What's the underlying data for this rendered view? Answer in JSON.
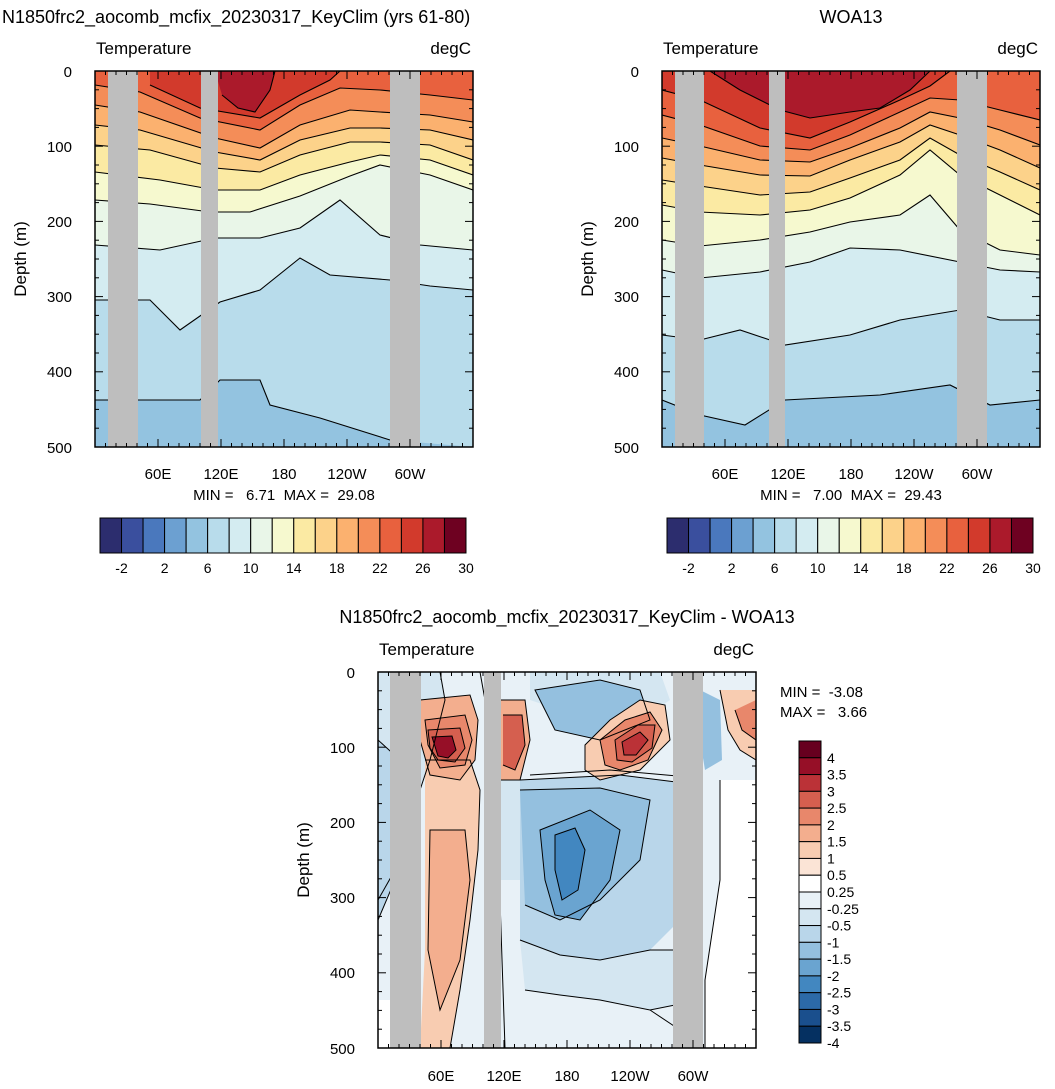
{
  "chart_data": [
    {
      "type": "heatmap",
      "title": "N1850frc2_aocomb_mcfix_20230317_KeyClim (yrs 61-80)",
      "left_label": "Temperature",
      "right_label": "degC",
      "ylabel": "Depth (m)",
      "ylim": [
        0,
        500
      ],
      "y_ticks": [
        "0",
        "100",
        "200",
        "300",
        "400",
        "500"
      ],
      "x_ticks": [
        "60E",
        "120E",
        "180",
        "120W",
        "60W"
      ],
      "stats": "MIN =   6.71  MAX =  29.08",
      "colorbar_labels": [
        "-2",
        "2",
        "6",
        "10",
        "14",
        "18",
        "22",
        "26",
        "30"
      ],
      "colorbar_levels": [
        -4,
        -2,
        0,
        2,
        4,
        6,
        8,
        10,
        12,
        14,
        16,
        18,
        20,
        22,
        24,
        26,
        28,
        30,
        32
      ],
      "min": 6.71,
      "max": 29.08
    },
    {
      "type": "heatmap",
      "title": "WOA13",
      "left_label": "Temperature",
      "right_label": "degC",
      "ylabel": "Depth (m)",
      "ylim": [
        0,
        500
      ],
      "y_ticks": [
        "0",
        "100",
        "200",
        "300",
        "400",
        "500"
      ],
      "x_ticks": [
        "60E",
        "120E",
        "180",
        "120W",
        "60W"
      ],
      "stats": "MIN =   7.00  MAX =  29.43",
      "colorbar_labels": [
        "-2",
        "2",
        "6",
        "10",
        "14",
        "18",
        "22",
        "26",
        "30"
      ],
      "colorbar_levels": [
        -4,
        -2,
        0,
        2,
        4,
        6,
        8,
        10,
        12,
        14,
        16,
        18,
        20,
        22,
        24,
        26,
        28,
        30,
        32
      ],
      "min": 7.0,
      "max": 29.43
    },
    {
      "type": "heatmap",
      "title": "N1850frc2_aocomb_mcfix_20230317_KeyClim - WOA13",
      "left_label": "Temperature",
      "right_label": "degC",
      "ylabel": "Depth (m)",
      "ylim": [
        0,
        500
      ],
      "y_ticks": [
        "0",
        "100",
        "200",
        "300",
        "400",
        "500"
      ],
      "x_ticks": [
        "60E",
        "120E",
        "180",
        "120W",
        "60W"
      ],
      "stats_min": "MIN =  -3.08",
      "stats_max": "MAX =   3.66",
      "colorbar_labels": [
        "4",
        "3.5",
        "3",
        "2.5",
        "2",
        "1.5",
        "1",
        "0.5",
        "0.25",
        "-0.25",
        "-0.5",
        "-1",
        "-1.5",
        "-2",
        "-2.5",
        "-3",
        "-3.5",
        "-4"
      ],
      "min": -3.08,
      "max": 3.66
    }
  ],
  "colors": {
    "land_mask": "#bebebe",
    "temp_palette": [
      "#2c2d6e",
      "#3a4f9e",
      "#4a78bd",
      "#6ca0d1",
      "#93c3e0",
      "#b8dceb",
      "#d4ecf1",
      "#e9f6e8",
      "#f6f9cf",
      "#fbeaa3",
      "#fcd28a",
      "#fbb16f",
      "#f48d58",
      "#e8613e",
      "#d23a2c",
      "#ab1a2b",
      "#6e0121"
    ],
    "diff_palette": [
      "#053061",
      "#1a4f8d",
      "#2c6aa8",
      "#4287c0",
      "#6aa4d0",
      "#94c0df",
      "#b9d6ea",
      "#d4e6f1",
      "#e8f1f7",
      "#ffffff",
      "#fbe4d6",
      "#f8ccb1",
      "#f3ae8e",
      "#e8876b",
      "#d55f4f",
      "#bb3237",
      "#960f27",
      "#67001f"
    ]
  }
}
